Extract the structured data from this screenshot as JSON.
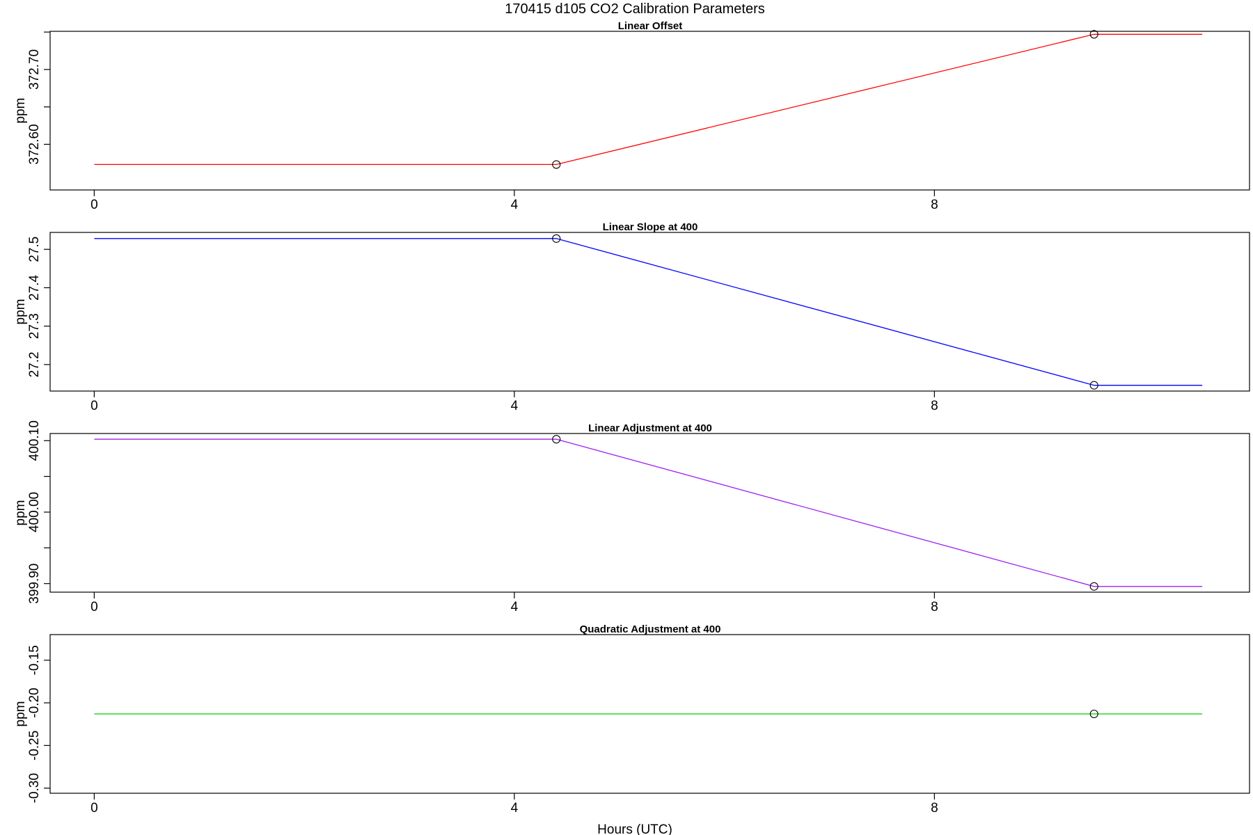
{
  "title": "170415   d105   CO2 Calibration Parameters",
  "chart_data": [
    {
      "type": "line",
      "title": "Linear Offset",
      "ylabel": "ppm",
      "xlabel": "",
      "color": "#ff0000",
      "x": [
        0.0,
        4.4,
        9.52,
        10.55
      ],
      "values": [
        372.573,
        372.573,
        372.747,
        372.747
      ],
      "markers_x": [
        4.4,
        9.52
      ],
      "markers_y": [
        372.573,
        372.747
      ],
      "xlim": [
        -0.42,
        11.0
      ],
      "ylim": [
        372.539,
        372.751
      ],
      "xticks": [
        0,
        4,
        8
      ],
      "xtick_labels": [
        "0",
        "4",
        "8"
      ],
      "yticks": [
        372.6,
        372.65,
        372.7,
        372.75
      ],
      "ytick_labels": [
        "372.60",
        "",
        "372.70",
        ""
      ]
    },
    {
      "type": "line",
      "title": "Linear Slope at 400",
      "ylabel": "ppm",
      "xlabel": "",
      "color": "#0000ff",
      "x": [
        0.0,
        4.4,
        9.52,
        10.55
      ],
      "values": [
        27.528,
        27.528,
        27.146,
        27.146
      ],
      "markers_x": [
        4.4,
        9.52
      ],
      "markers_y": [
        27.528,
        27.146
      ],
      "xlim": [
        -0.42,
        11.0
      ],
      "ylim": [
        27.131,
        27.544
      ],
      "xticks": [
        0,
        4,
        8
      ],
      "xtick_labels": [
        "0",
        "4",
        "8"
      ],
      "yticks": [
        27.2,
        27.3,
        27.4,
        27.5
      ],
      "ytick_labels": [
        "27.2",
        "27.3",
        "27.4",
        "27.5"
      ]
    },
    {
      "type": "line",
      "title": "Linear Adjustment at 400",
      "ylabel": "ppm",
      "xlabel": "",
      "color": "#a020f0",
      "x": [
        0.0,
        4.4,
        9.52,
        10.55
      ],
      "values": [
        400.102,
        400.102,
        399.896,
        399.896
      ],
      "markers_x": [
        4.4,
        9.52
      ],
      "markers_y": [
        400.102,
        399.896
      ],
      "xlim": [
        -0.42,
        11.0
      ],
      "ylim": [
        399.888,
        400.11
      ],
      "xticks": [
        0,
        4,
        8
      ],
      "xtick_labels": [
        "0",
        "4",
        "8"
      ],
      "yticks": [
        399.9,
        399.95,
        400.0,
        400.05,
        400.1
      ],
      "ytick_labels": [
        "399.90",
        "",
        "400.00",
        "",
        "400.10"
      ]
    },
    {
      "type": "line",
      "title": "Quadratic Adjustment at 400",
      "ylabel": "ppm",
      "xlabel": "Hours (UTC)",
      "color": "#00cd00",
      "x": [
        0.0,
        9.52,
        10.55
      ],
      "values": [
        -0.213,
        -0.213,
        -0.213
      ],
      "markers_x": [
        9.52
      ],
      "markers_y": [
        -0.213
      ],
      "xlim": [
        -0.42,
        11.0
      ],
      "ylim": [
        -0.306,
        -0.12
      ],
      "xticks": [
        0,
        4,
        8
      ],
      "xtick_labels": [
        "0",
        "4",
        "8"
      ],
      "yticks": [
        -0.3,
        -0.25,
        -0.2,
        -0.15
      ],
      "ytick_labels": [
        "-0.30",
        "-0.25",
        "-0.20",
        "-0.15"
      ]
    }
  ]
}
